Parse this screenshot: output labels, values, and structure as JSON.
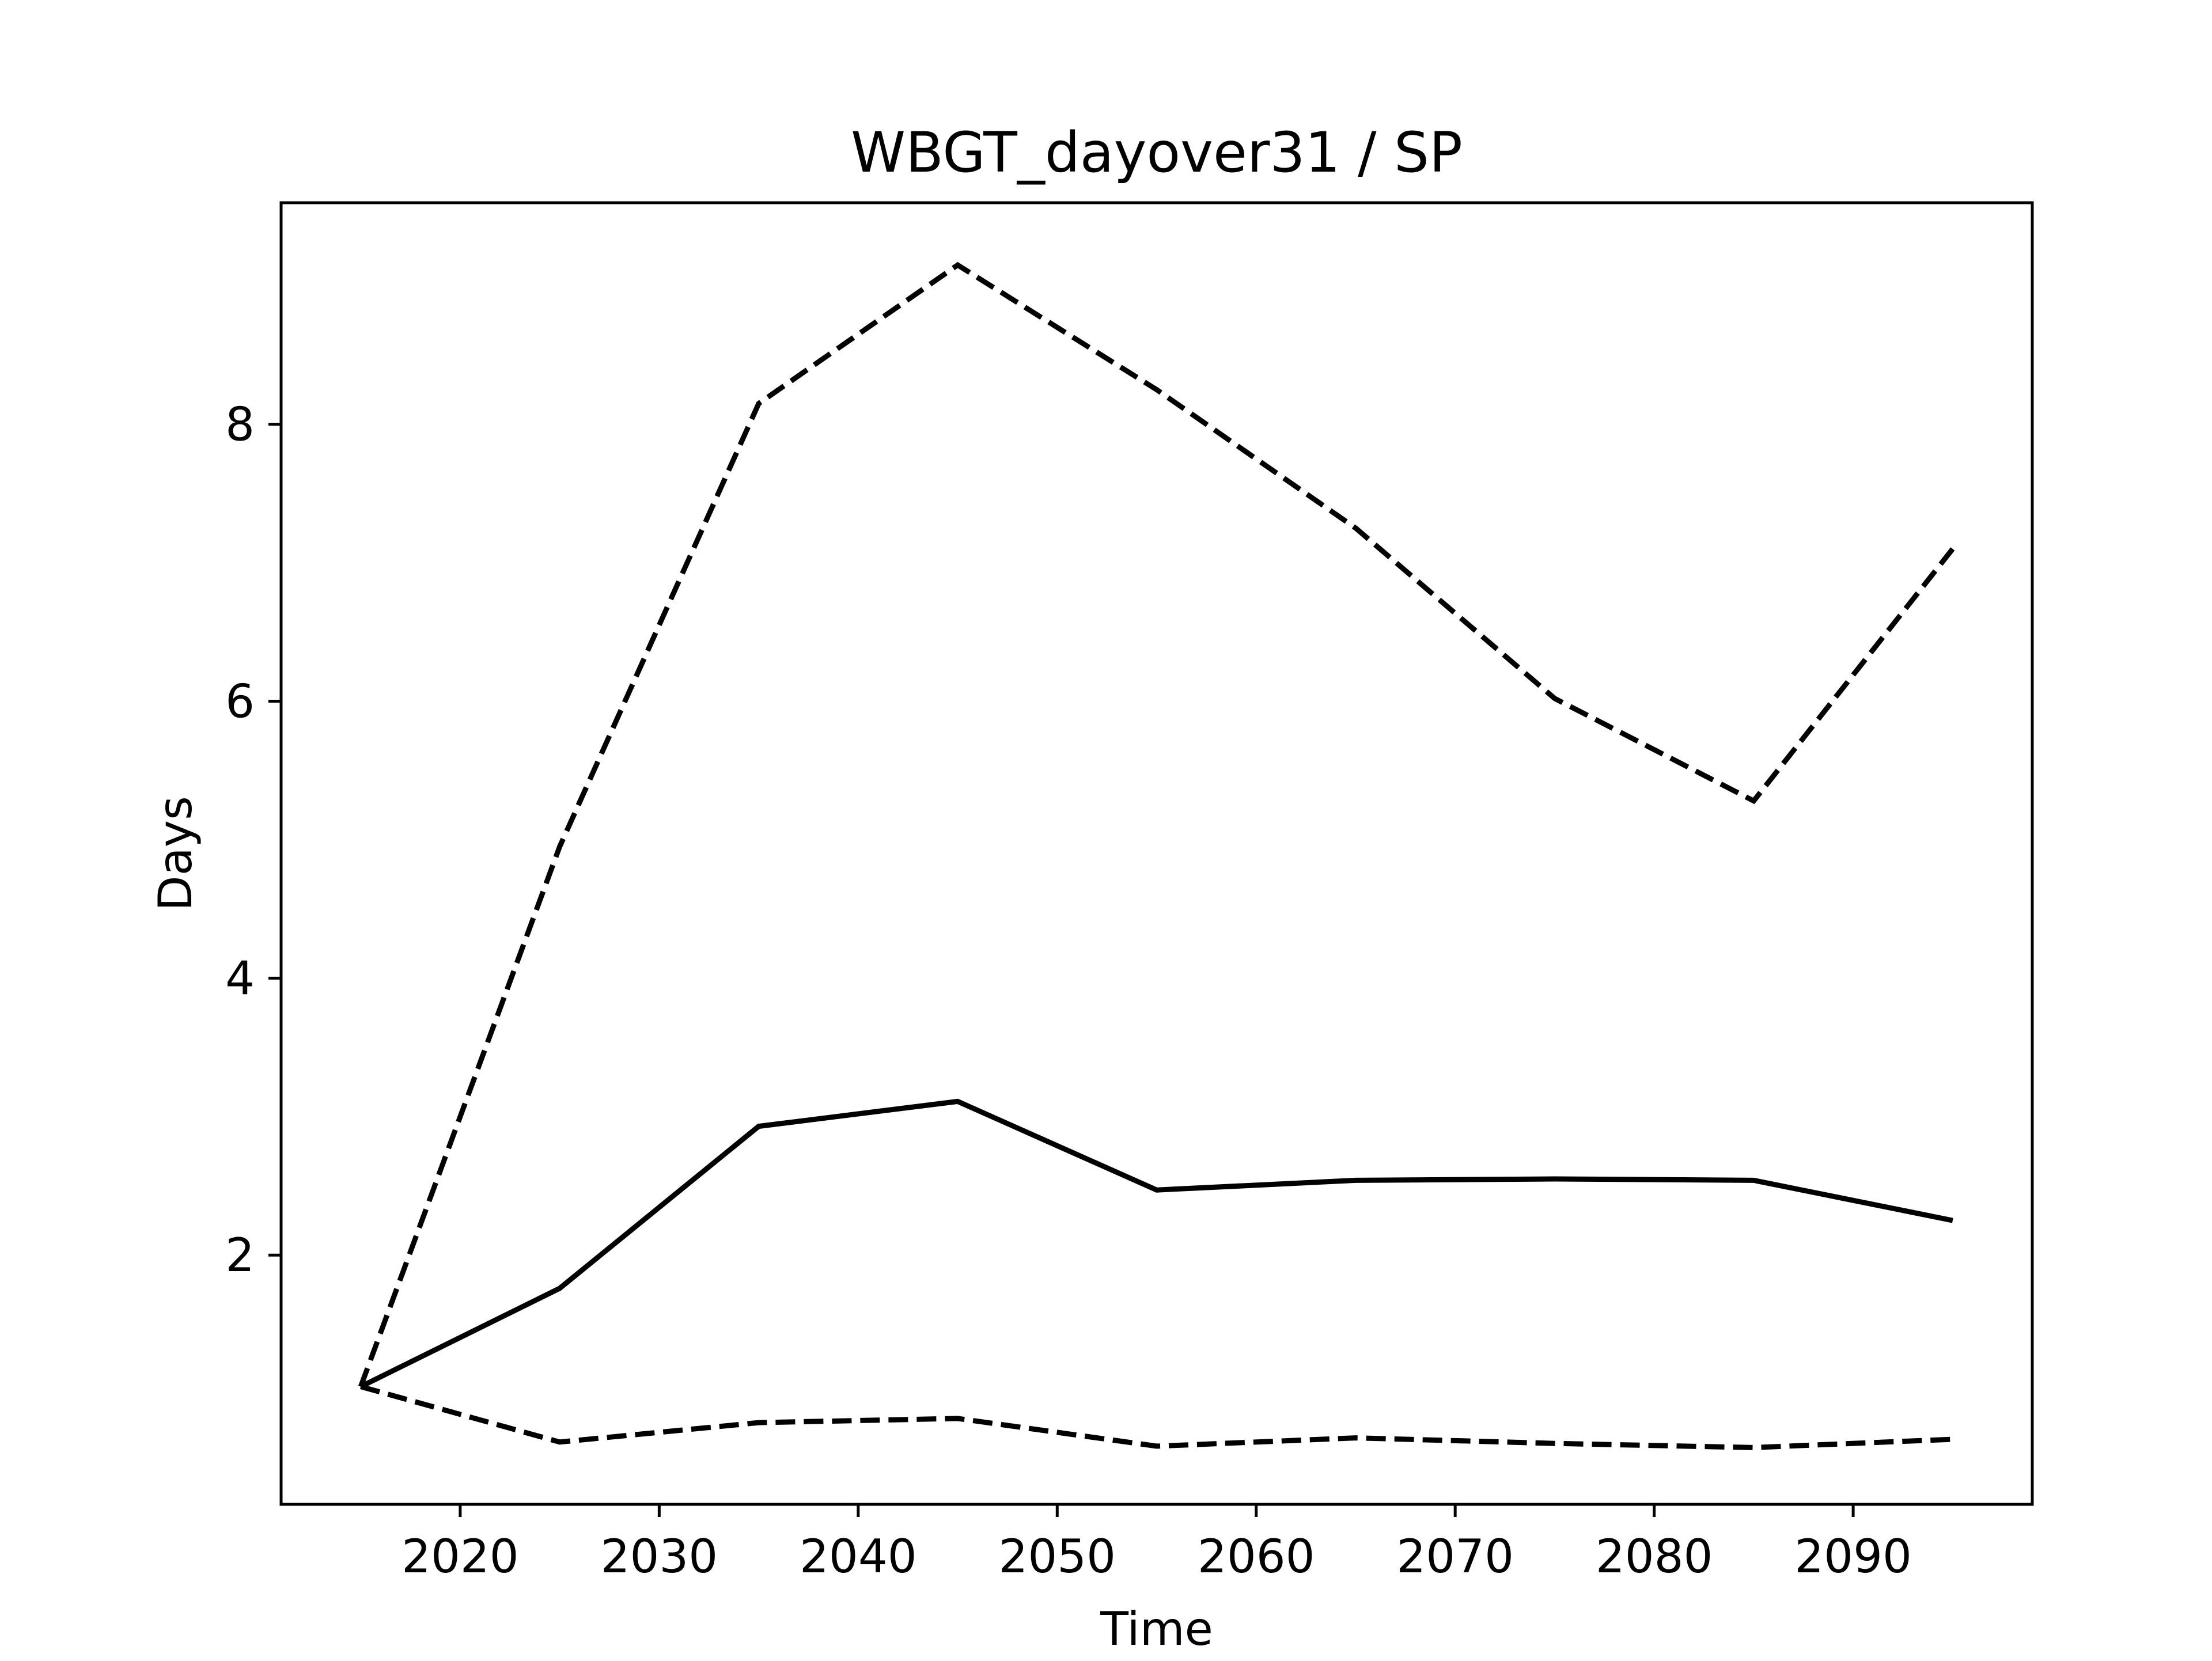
{
  "chart_data": {
    "type": "line",
    "title": "WBGT_dayover31 / SP",
    "xlabel": "Time",
    "ylabel": "Days",
    "xlim": [
      2011,
      2099
    ],
    "ylim": [
      0.2,
      9.6
    ],
    "xticks": [
      2020,
      2030,
      2040,
      2050,
      2060,
      2070,
      2080,
      2090
    ],
    "yticks": [
      2,
      4,
      6,
      8
    ],
    "grid": false,
    "legend": "none",
    "x": [
      2015,
      2025,
      2035,
      2045,
      2055,
      2065,
      2075,
      2085,
      2095
    ],
    "series": [
      {
        "style": "dashed",
        "color": "#000000",
        "values": [
          1.05,
          4.95,
          8.15,
          9.15,
          8.25,
          7.25,
          6.02,
          5.28,
          7.1
        ]
      },
      {
        "style": "solid",
        "color": "#000000",
        "values": [
          1.05,
          1.76,
          2.93,
          3.11,
          2.47,
          2.54,
          2.55,
          2.54,
          2.25
        ]
      },
      {
        "style": "dashed",
        "color": "#000000",
        "values": [
          1.05,
          0.65,
          0.79,
          0.82,
          0.62,
          0.68,
          0.64,
          0.61,
          0.67
        ]
      }
    ]
  }
}
